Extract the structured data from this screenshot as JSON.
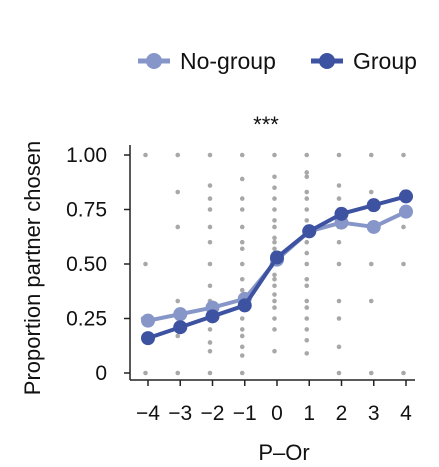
{
  "chart_data": {
    "type": "line",
    "title": "",
    "annotation": "***",
    "xlabel": "P–Or",
    "ylabel": "Proportion partner chosen",
    "x": [
      -4,
      -3,
      -2,
      -1,
      0,
      1,
      2,
      3,
      4
    ],
    "x_tick_labels": [
      "−4",
      "−3",
      "−2",
      "−1",
      "0",
      "1",
      "2",
      "3",
      "4"
    ],
    "y_ticks": [
      0,
      0.25,
      0.5,
      0.75,
      1.0
    ],
    "y_tick_labels": [
      "0",
      "0.25",
      "0.50",
      "0.75",
      "1.00"
    ],
    "xlim": [
      -4.5,
      4.5
    ],
    "ylim": [
      -0.02,
      1.04
    ],
    "grid": false,
    "legend_position": "top",
    "series": [
      {
        "name": "No-group",
        "color": "#8796c8",
        "values": [
          0.24,
          0.27,
          0.3,
          0.34,
          0.52,
          0.65,
          0.69,
          0.67,
          0.74
        ]
      },
      {
        "name": "Group",
        "color": "#3d52a1",
        "values": [
          0.16,
          0.21,
          0.26,
          0.31,
          0.53,
          0.65,
          0.73,
          0.77,
          0.81
        ]
      }
    ],
    "scatter_color": "#a8a8a8",
    "raw_points": {
      "-4": [
        0,
        0.25,
        0.25,
        0.5,
        1.0
      ],
      "-3": [
        0,
        0.17,
        0.25,
        0.33,
        0.67,
        0.83,
        1.0
      ],
      "-2": [
        0,
        0.1,
        0.14,
        0.2,
        0.25,
        0.3,
        0.33,
        0.4,
        0.5,
        0.6,
        0.67,
        0.75,
        0.8,
        0.86,
        1.0
      ],
      "-1": [
        0,
        0.08,
        0.12,
        0.17,
        0.2,
        0.25,
        0.3,
        0.33,
        0.38,
        0.43,
        0.5,
        0.57,
        0.6,
        0.67,
        0.75,
        0.8,
        0.89,
        1.0
      ],
      "0": [
        0.1,
        0.2,
        0.25,
        0.3,
        0.33,
        0.36,
        0.4,
        0.43,
        0.45,
        0.5,
        0.5,
        0.55,
        0.57,
        0.6,
        0.62,
        0.67,
        0.7,
        0.75,
        0.8,
        0.85,
        0.9,
        1.0
      ],
      "1": [
        0.09,
        0.15,
        0.2,
        0.25,
        0.3,
        0.33,
        0.4,
        0.43,
        0.5,
        0.55,
        0.6,
        0.67,
        0.7,
        0.75,
        0.8,
        0.83,
        0.9,
        0.92,
        1.0
      ],
      "2": [
        0,
        0.12,
        0.25,
        0.33,
        0.5,
        0.6,
        0.67,
        0.75,
        0.8,
        0.86,
        1.0
      ],
      "3": [
        0,
        0.33,
        0.5,
        0.67,
        0.75,
        0.83,
        1.0
      ],
      "4": [
        0,
        0.5,
        0.67,
        0.75,
        0.83,
        1.0
      ]
    }
  }
}
